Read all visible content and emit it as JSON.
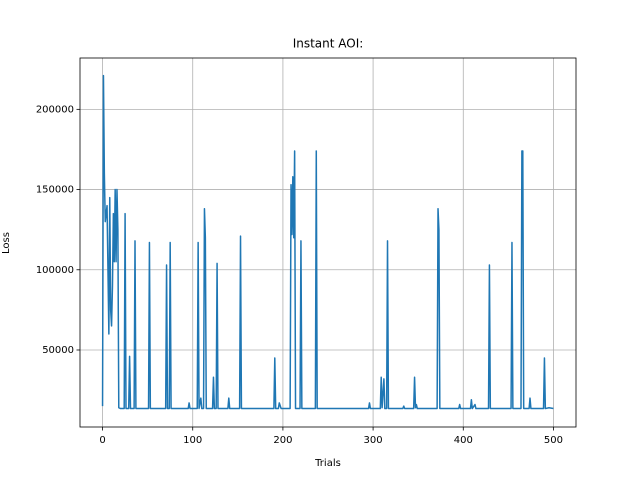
{
  "chart_data": {
    "type": "line",
    "title": "Instant AOI:",
    "x_label": "Trials",
    "y_label": "Loss",
    "color": "#1f77b4",
    "grid": true,
    "x": [
      0,
      1,
      2,
      3,
      5,
      6,
      7,
      8,
      9,
      10,
      11,
      12,
      13,
      14,
      15,
      16,
      17,
      18,
      20,
      24,
      25,
      26,
      29,
      30,
      31,
      35,
      36,
      37,
      51,
      52,
      53,
      70,
      71,
      72,
      74,
      75,
      76,
      95,
      96,
      97,
      105,
      106,
      107,
      109,
      110,
      112,
      113,
      114,
      115,
      122,
      123,
      124,
      126,
      127,
      128,
      139,
      140,
      141,
      152,
      153,
      154,
      190,
      191,
      192,
      195,
      196,
      198,
      208,
      209,
      210,
      211,
      212,
      213,
      214,
      219,
      220,
      221,
      236,
      237,
      238,
      295,
      296,
      297,
      308,
      309,
      310,
      312,
      313,
      315,
      316,
      317,
      333,
      334,
      335,
      345,
      346,
      347,
      348,
      349,
      371,
      372,
      373,
      374,
      395,
      396,
      397,
      408,
      409,
      410,
      413,
      414,
      428,
      429,
      430,
      453,
      454,
      455,
      464,
      465,
      466,
      467,
      473,
      474,
      475,
      489,
      490,
      491,
      495,
      500
    ],
    "values": [
      15000,
      221000,
      160000,
      130000,
      140000,
      100000,
      60000,
      145000,
      75000,
      65000,
      90000,
      135000,
      105000,
      150000,
      105000,
      150000,
      125000,
      14000,
      13500,
      13500,
      135000,
      13500,
      13500,
      46000,
      13500,
      13500,
      118000,
      13500,
      13500,
      117000,
      13500,
      13500,
      103000,
      13500,
      13500,
      117000,
      13500,
      13500,
      17000,
      13500,
      13500,
      117000,
      13500,
      20000,
      13500,
      13500,
      138000,
      120000,
      13500,
      13500,
      33000,
      13500,
      13500,
      104000,
      13500,
      13500,
      20000,
      13500,
      13500,
      121000,
      13500,
      13500,
      45000,
      13500,
      13500,
      17000,
      13500,
      13500,
      153000,
      122000,
      158000,
      120000,
      174000,
      13500,
      13500,
      118000,
      13500,
      13500,
      174000,
      13500,
      13500,
      17000,
      13500,
      13500,
      33000,
      14000,
      32000,
      13500,
      13500,
      118000,
      13500,
      13500,
      15000,
      13500,
      13500,
      33000,
      14000,
      16000,
      13500,
      13500,
      138000,
      125000,
      13500,
      13500,
      16000,
      13500,
      13500,
      19000,
      13500,
      16000,
      13500,
      13500,
      103000,
      13500,
      13500,
      117000,
      13500,
      13500,
      174000,
      174000,
      13500,
      13500,
      20000,
      13500,
      13500,
      45000,
      13500,
      14000,
      13500
    ],
    "xlim": [
      -25,
      525
    ],
    "xticks": [
      0,
      100,
      200,
      300,
      400,
      500
    ],
    "ylim": [
      2000,
      232000
    ],
    "yticks": [
      50000,
      100000,
      150000,
      200000
    ]
  }
}
